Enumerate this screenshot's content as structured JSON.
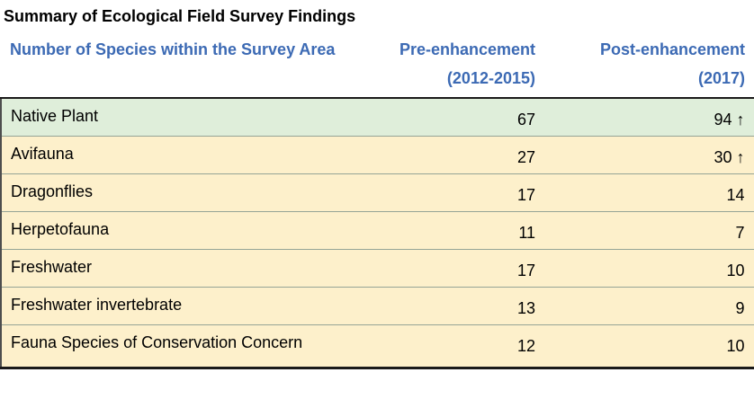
{
  "title": "Summary of Ecological Field Survey Findings",
  "colors": {
    "header_text_blue": "#3c6ab4",
    "highlight_row_green": "#dfeeda",
    "row_cream": "#fdf0cb",
    "row_divider": "#95a496",
    "strong_border": "#1a1a1a"
  },
  "table": {
    "columns": [
      {
        "label": "Number of Species within the Survey Area"
      },
      {
        "label": "Pre-enhancement",
        "sub": "(2012-2015)"
      },
      {
        "label": "Post-enhancement",
        "sub": "(2017)"
      }
    ],
    "rows": [
      {
        "species": "Native Plant",
        "pre": "67",
        "post": "94",
        "trend_icon": "↑",
        "highlight": true
      },
      {
        "species": "Avifauna",
        "pre": "27",
        "post": "30",
        "trend_icon": "↑",
        "highlight": false
      },
      {
        "species": "Dragonflies",
        "pre": "17",
        "post": "14",
        "trend_icon": "",
        "highlight": false
      },
      {
        "species": "Herpetofauna",
        "pre": "11",
        "post": "7",
        "trend_icon": "",
        "highlight": false
      },
      {
        "species": "Freshwater",
        "pre": "17",
        "post": "10",
        "trend_icon": "",
        "highlight": false
      },
      {
        "species": "Freshwater invertebrate",
        "pre": "13",
        "post": "9",
        "trend_icon": "",
        "highlight": false
      },
      {
        "species": "Fauna Species of Conservation Concern",
        "pre": "12",
        "post": "10",
        "trend_icon": "",
        "highlight": false
      }
    ]
  }
}
